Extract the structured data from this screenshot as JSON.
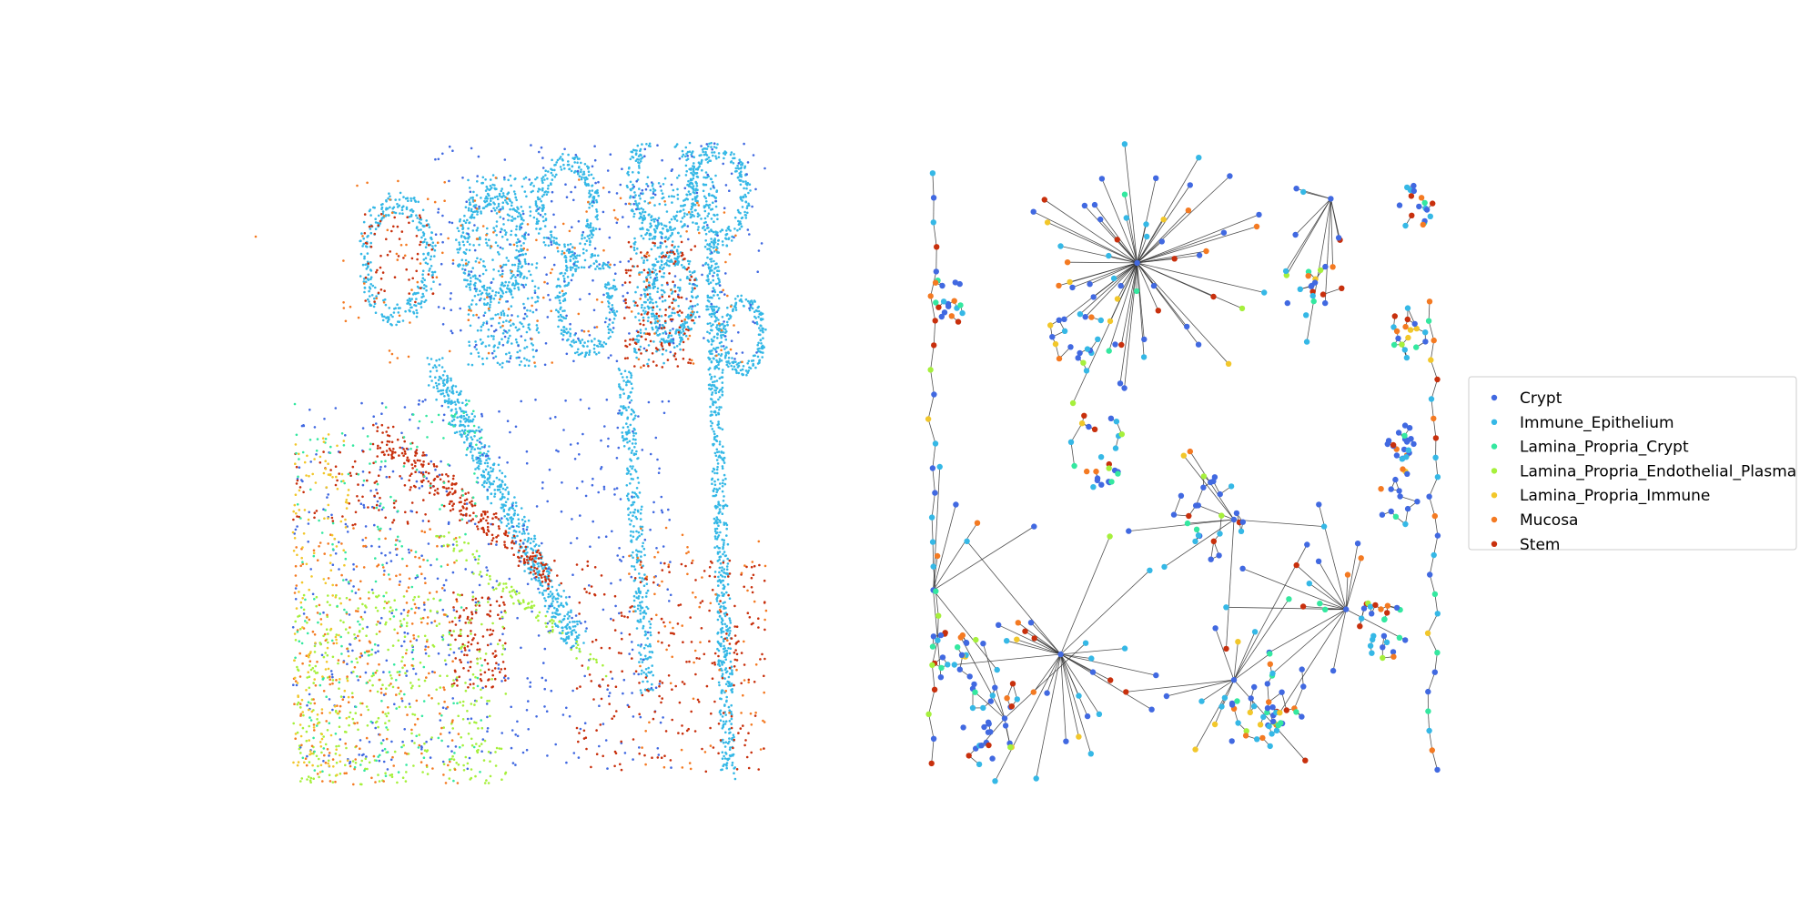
{
  "chart_data": [
    {
      "type": "scatter",
      "panel": "cell-type scatter",
      "title": "",
      "xlabel": "",
      "ylabel": "",
      "axes_visible": false,
      "grid": false,
      "xlim": [
        0,
        100
      ],
      "ylim": [
        0,
        100
      ],
      "regions": [
        {
          "category": "Immune_Epithelium",
          "kind": "ring",
          "cx": 78,
          "cy": 6,
          "r": 9,
          "count": 280
        },
        {
          "category": "Immune_Epithelium",
          "kind": "ring",
          "cx": 90,
          "cy": 8,
          "r": 8,
          "count": 240
        },
        {
          "category": "Immune_Epithelium",
          "kind": "ring",
          "cx": 22,
          "cy": 18,
          "r": 10,
          "count": 280
        },
        {
          "category": "Immune_Epithelium",
          "kind": "ring",
          "cx": 42,
          "cy": 16,
          "r": 9,
          "count": 260
        },
        {
          "category": "Immune_Epithelium",
          "kind": "ring",
          "cx": 58,
          "cy": 10,
          "r": 8,
          "count": 240
        },
        {
          "category": "Immune_Epithelium",
          "kind": "ring",
          "cx": 62,
          "cy": 25,
          "r": 8,
          "count": 220
        },
        {
          "category": "Immune_Epithelium",
          "kind": "ring",
          "cx": 80,
          "cy": 24,
          "r": 7,
          "count": 200
        },
        {
          "category": "Immune_Epithelium",
          "kind": "ring",
          "cx": 95,
          "cy": 30,
          "r": 6,
          "count": 180
        },
        {
          "category": "Immune_Epithelium",
          "kind": "band",
          "x0": 30,
          "y0": 35,
          "x1": 60,
          "y1": 78,
          "w": 4,
          "count": 600
        },
        {
          "category": "Immune_Epithelium",
          "kind": "band",
          "x0": 88,
          "y0": 5,
          "x1": 92,
          "y1": 98,
          "w": 3,
          "count": 700
        },
        {
          "category": "Immune_Epithelium",
          "kind": "band",
          "x0": 70,
          "y0": 35,
          "x1": 75,
          "y1": 85,
          "w": 3,
          "count": 300
        },
        {
          "category": "Immune_Epithelium",
          "kind": "box",
          "x0": 37,
          "y0": 5,
          "x1": 52,
          "y1": 35,
          "count": 350
        },
        {
          "category": "Immune_Epithelium",
          "kind": "box",
          "x0": 72,
          "y0": 5,
          "x1": 82,
          "y1": 35,
          "count": 250
        },
        {
          "category": "Crypt",
          "kind": "box",
          "x0": 0,
          "y0": 40,
          "x1": 80,
          "y1": 98,
          "count": 550
        },
        {
          "category": "Crypt",
          "kind": "box",
          "x0": 30,
          "y0": 0,
          "x1": 100,
          "y1": 35,
          "count": 300
        },
        {
          "category": "Stem",
          "kind": "band",
          "x0": 18,
          "y0": 45,
          "x1": 55,
          "y1": 68,
          "w": 4,
          "count": 280
        },
        {
          "category": "Stem",
          "kind": "box",
          "x0": 33,
          "y0": 70,
          "x1": 45,
          "y1": 85,
          "count": 120
        },
        {
          "category": "Stem",
          "kind": "box",
          "x0": 0,
          "y0": 48,
          "x1": 30,
          "y1": 60,
          "count": 90
        },
        {
          "category": "Stem",
          "kind": "box",
          "x0": 60,
          "y0": 65,
          "x1": 100,
          "y1": 98,
          "count": 250
        },
        {
          "category": "Stem",
          "kind": "box",
          "x0": 70,
          "y0": 15,
          "x1": 85,
          "y1": 35,
          "count": 150
        },
        {
          "category": "Stem",
          "kind": "box",
          "x0": 15,
          "y0": 10,
          "x1": 30,
          "y1": 25,
          "count": 60
        },
        {
          "category": "Lamina_Propria_Endothelial_Plasma",
          "kind": "box",
          "x0": 0,
          "y0": 70,
          "x1": 45,
          "y1": 100,
          "count": 400
        },
        {
          "category": "Lamina_Propria_Endothelial_Plasma",
          "kind": "band",
          "x0": 30,
          "y0": 60,
          "x1": 65,
          "y1": 82,
          "w": 3,
          "count": 100
        },
        {
          "category": "Mucosa",
          "kind": "box",
          "x0": 0,
          "y0": 60,
          "x1": 35,
          "y1": 100,
          "count": 250
        },
        {
          "category": "Mucosa",
          "kind": "box",
          "x0": 10,
          "y0": 5,
          "x1": 95,
          "y1": 35,
          "count": 150
        },
        {
          "category": "Mucosa",
          "kind": "box",
          "x0": 70,
          "y0": 60,
          "x1": 100,
          "y1": 98,
          "count": 80
        },
        {
          "category": "Lamina_Propria_Crypt",
          "kind": "box",
          "x0": 0,
          "y0": 40,
          "x1": 40,
          "y1": 100,
          "count": 220
        },
        {
          "category": "Lamina_Propria_Immune",
          "kind": "box",
          "x0": 0,
          "y0": 45,
          "x1": 12,
          "y1": 100,
          "count": 150
        }
      ]
    },
    {
      "type": "network",
      "panel": "cell-type graph",
      "title": "",
      "axes_visible": false,
      "xlim": [
        0,
        100
      ],
      "ylim": [
        0,
        100
      ],
      "hubs": [
        {
          "x": 41,
          "y": 19,
          "spokes": 62
        },
        {
          "x": 79,
          "y": 9,
          "spokes": 14
        },
        {
          "x": 26,
          "y": 80,
          "spokes": 28
        },
        {
          "x": 82,
          "y": 73,
          "spokes": 20
        },
        {
          "x": 60,
          "y": 84,
          "spokes": 16
        },
        {
          "x": 1,
          "y": 70,
          "spokes": 12
        },
        {
          "x": 15,
          "y": 90,
          "spokes": 8
        },
        {
          "x": 60,
          "y": 59,
          "spokes": 8
        }
      ],
      "clusters": [
        {
          "x": 55,
          "y": 59,
          "r": 7,
          "n": 24
        },
        {
          "x": 33,
          "y": 48,
          "r": 6,
          "n": 26
        },
        {
          "x": 63,
          "y": 90,
          "r": 6,
          "n": 30
        },
        {
          "x": 93,
          "y": 47,
          "r": 3,
          "n": 22
        },
        {
          "x": 94,
          "y": 30,
          "r": 4,
          "n": 18
        },
        {
          "x": 89,
          "y": 76,
          "r": 5,
          "n": 26
        },
        {
          "x": 95,
          "y": 10,
          "r": 4,
          "n": 18
        },
        {
          "x": 13,
          "y": 90,
          "r": 8,
          "n": 28
        },
        {
          "x": 4,
          "y": 25,
          "r": 4,
          "n": 18
        },
        {
          "x": 5,
          "y": 80,
          "r": 5,
          "n": 20
        },
        {
          "x": 76,
          "y": 25,
          "r": 6,
          "n": 16
        },
        {
          "x": 30,
          "y": 30,
          "r": 7,
          "n": 18
        },
        {
          "x": 92,
          "y": 55,
          "r": 5,
          "n": 14
        },
        {
          "x": 70,
          "y": 86,
          "r": 6,
          "n": 16
        }
      ]
    }
  ],
  "legend": {
    "placement": "right",
    "entries": [
      {
        "label": "Crypt",
        "color": "#4169e1"
      },
      {
        "label": "Immune_Epithelium",
        "color": "#35b8e6"
      },
      {
        "label": "Lamina_Propria_Crypt",
        "color": "#34e8a0"
      },
      {
        "label": "Lamina_Propria_Endothelial_Plasma",
        "color": "#a6f03c"
      },
      {
        "label": "Lamina_Propria_Immune",
        "color": "#f2c72a"
      },
      {
        "label": "Mucosa",
        "color": "#f47a22"
      },
      {
        "label": "Stem",
        "color": "#c8300d"
      }
    ]
  }
}
